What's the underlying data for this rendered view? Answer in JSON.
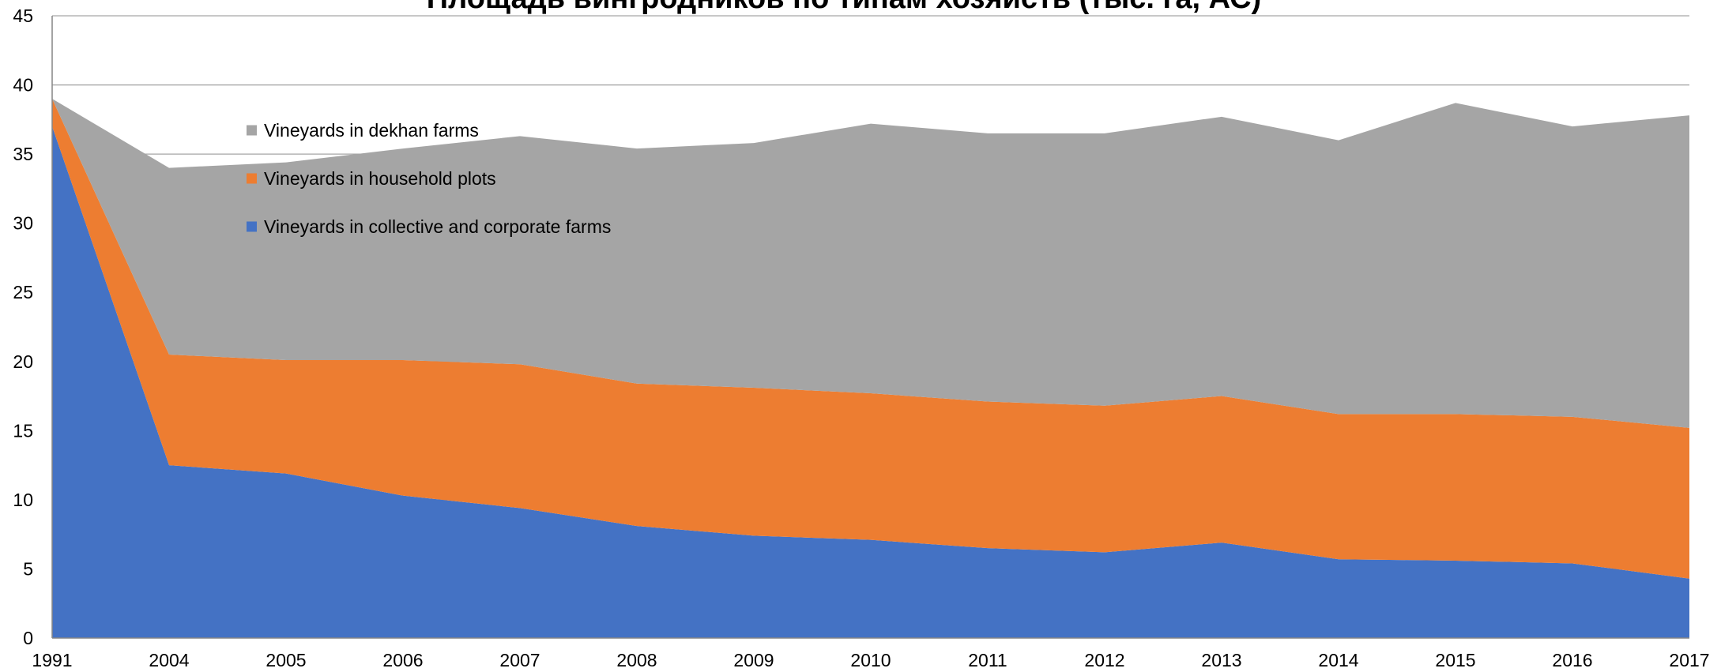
{
  "chart_data": {
    "type": "area",
    "stacked": true,
    "title": "Площадь вингродников по типам хозяйств (тыс. га, АС)",
    "xlabel": "",
    "ylabel": "",
    "categories": [
      "1991",
      "2004",
      "2005",
      "2006",
      "2007",
      "2008",
      "2009",
      "2010",
      "2011",
      "2012",
      "2013",
      "2014",
      "2015",
      "2016",
      "2017"
    ],
    "ylim": [
      0,
      45
    ],
    "yticks": [
      0,
      5,
      10,
      15,
      20,
      25,
      30,
      35,
      40,
      45
    ],
    "grid": true,
    "legend_position": "top-left",
    "series": [
      {
        "name": "Vineyards in collective and corporate farms",
        "color": "#4472c4",
        "values": [
          37.0,
          12.5,
          11.9,
          10.3,
          9.4,
          8.1,
          7.4,
          7.1,
          6.5,
          6.2,
          6.9,
          5.7,
          5.6,
          5.4,
          4.3
        ]
      },
      {
        "name": "Vineyards in household plots",
        "color": "#ed7d31",
        "values": [
          2.0,
          8.0,
          8.2,
          9.8,
          10.4,
          10.3,
          10.7,
          10.6,
          10.6,
          10.6,
          10.6,
          10.5,
          10.6,
          10.6,
          10.9
        ]
      },
      {
        "name": "Vineyards in dekhan farms",
        "color": "#a5a5a5",
        "values": [
          0.0,
          13.5,
          14.3,
          15.3,
          16.5,
          17.0,
          17.7,
          19.5,
          19.4,
          19.7,
          20.2,
          19.8,
          22.5,
          21.0,
          22.6
        ]
      }
    ],
    "legend_order": [
      "Vineyards in dekhan farms",
      "Vineyards in household plots",
      "Vineyards in collective and corporate farms"
    ]
  }
}
